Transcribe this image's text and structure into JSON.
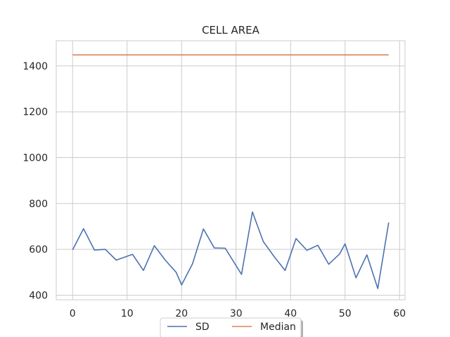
{
  "chart_data": {
    "type": "line",
    "title": "CELL AREA",
    "xlabel": "",
    "ylabel": "",
    "xlim": [
      -3,
      61
    ],
    "ylim": [
      380,
      1510
    ],
    "x_ticks": [
      0,
      10,
      20,
      30,
      40,
      50,
      60
    ],
    "y_ticks": [
      400,
      600,
      800,
      1000,
      1200,
      1400
    ],
    "grid": true,
    "legend_position": "bottom-center",
    "series": [
      {
        "name": "SD",
        "color": "#4c72b0",
        "x": [
          0,
          2,
          4,
          6,
          8,
          11,
          13,
          15,
          17,
          19,
          20,
          22,
          24,
          26,
          28,
          31,
          33,
          35,
          37,
          39,
          41,
          43,
          45,
          47,
          49,
          50,
          52,
          54,
          56,
          58
        ],
        "values": [
          598,
          690,
          597,
          600,
          553,
          578,
          508,
          616,
          553,
          500,
          445,
          537,
          689,
          606,
          605,
          491,
          763,
          634,
          568,
          508,
          647,
          596,
          618,
          535,
          580,
          624,
          476,
          576,
          429,
          717
        ]
      },
      {
        "name": "Median",
        "color": "#dd8452",
        "x": [
          0,
          58
        ],
        "values": [
          1448,
          1448
        ]
      }
    ]
  }
}
